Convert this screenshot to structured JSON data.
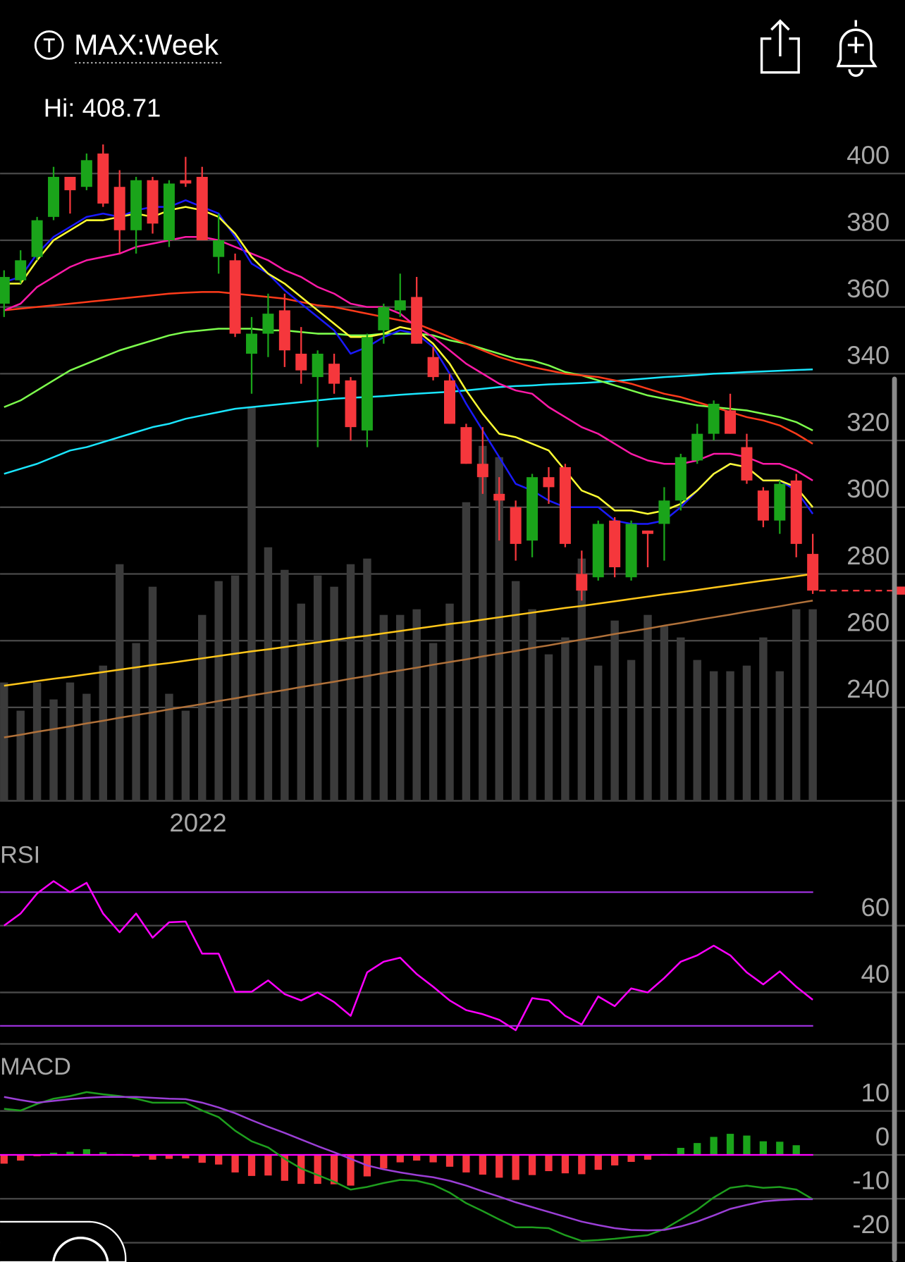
{
  "header": {
    "symbol": "MAX:Week",
    "hi": "Hi: 408.71"
  },
  "chart_data": [
    {
      "type": "candlestick",
      "categories": [
        null,
        null,
        null,
        null,
        null,
        null,
        null,
        null,
        null,
        null,
        null,
        null,
        "2022",
        null,
        null,
        null,
        null,
        null,
        null,
        null,
        null,
        null,
        null,
        null,
        null,
        null,
        null,
        null,
        null,
        null,
        null,
        null,
        null,
        null,
        null,
        null,
        null,
        null,
        null,
        null,
        null,
        null,
        null,
        null,
        null,
        null,
        null,
        null,
        null,
        null
      ],
      "open": [
        361,
        368,
        375,
        387,
        399,
        396,
        406,
        396,
        383,
        398,
        380,
        398,
        399,
        375,
        374,
        346,
        352,
        359,
        346,
        339,
        343,
        338,
        323,
        353,
        359,
        363,
        345,
        338,
        324,
        313,
        304,
        300,
        290,
        309,
        312,
        280,
        279,
        296,
        279,
        293,
        295,
        302,
        314,
        322,
        329,
        318,
        305,
        296,
        308,
        286
      ],
      "high": [
        371,
        377,
        387,
        402,
        399,
        406,
        408.71,
        401,
        399,
        399,
        398,
        405,
        402,
        388,
        376,
        357,
        364,
        364,
        354,
        347,
        346,
        339,
        352,
        361,
        370,
        369,
        348,
        340,
        325,
        324,
        309,
        302,
        310,
        312,
        313,
        287,
        296,
        297,
        296,
        293,
        306,
        316,
        325,
        332,
        334,
        322,
        306,
        308,
        310,
        292
      ],
      "low": [
        357,
        367,
        374,
        386,
        388,
        395,
        390,
        376,
        376,
        382,
        378,
        396,
        380,
        370,
        351,
        334,
        345,
        342,
        337,
        318,
        334,
        320,
        318,
        349,
        357,
        349,
        338,
        325,
        313,
        304,
        290,
        284,
        285,
        301,
        288,
        272,
        278,
        279,
        278,
        282,
        284,
        299,
        313,
        320,
        322,
        307,
        294,
        292,
        285,
        274
      ],
      "close": [
        369,
        374,
        386,
        399,
        395,
        404,
        391,
        383,
        398,
        385,
        397,
        397,
        380,
        380,
        352,
        352,
        358,
        347,
        341,
        346,
        337,
        324,
        351,
        360,
        362,
        349,
        339,
        325,
        313,
        309,
        302,
        289,
        309,
        306,
        289,
        275,
        295,
        282,
        295,
        292,
        302,
        315,
        322,
        331,
        322,
        308,
        296,
        307,
        289,
        275
      ],
      "volume": [
        21,
        16,
        21,
        18,
        21,
        19,
        24,
        42,
        28,
        38,
        19,
        16,
        33,
        39,
        40,
        70,
        45,
        41,
        35,
        40,
        38,
        42,
        43,
        33,
        33,
        34,
        28,
        35,
        53,
        63,
        61,
        39,
        34,
        26,
        29,
        43,
        24,
        32,
        25,
        33,
        31,
        29,
        25,
        23,
        23,
        24,
        29,
        23,
        34,
        34
      ],
      "vlim": [
        0,
        100
      ],
      "up_color": "#1aa41a",
      "down_color": "#f5373c",
      "volume_color": "#3b3b3b",
      "ylim": [
        212,
        411
      ],
      "yticks": [
        240,
        260,
        280,
        300,
        320,
        340,
        360,
        380,
        400
      ],
      "grid": true,
      "series": [
        {
          "color": "#b0713a",
          "values": [
            231,
            231.8,
            232.7,
            233.5,
            234.3,
            235.2,
            236,
            236.9,
            237.7,
            238.5,
            239.4,
            240.2,
            241,
            241.9,
            242.7,
            243.6,
            244.4,
            245.2,
            246.1,
            246.9,
            247.7,
            248.6,
            249.4,
            250.3,
            251.1,
            251.9,
            252.8,
            253.6,
            254.4,
            255.3,
            256.1,
            256.9,
            257.8,
            258.6,
            259.5,
            260.3,
            261.1,
            262,
            262.8,
            263.6,
            264.5,
            265.3,
            266.2,
            267,
            267.8,
            268.7,
            269.5,
            270.3,
            271.2,
            272
          ]
        },
        {
          "color": "#ffc61a",
          "values": [
            246.5,
            247.2,
            247.9,
            248.6,
            249.2,
            249.9,
            250.6,
            251.3,
            252,
            252.7,
            253.3,
            254,
            254.7,
            255.4,
            256.1,
            256.8,
            257.4,
            258.1,
            258.8,
            259.5,
            260.2,
            260.9,
            261.5,
            262.2,
            262.9,
            263.6,
            264.3,
            265,
            265.6,
            266.3,
            267,
            267.7,
            268.4,
            269.1,
            269.8,
            270.4,
            271.1,
            271.8,
            272.5,
            273.2,
            273.9,
            274.5,
            275.2,
            275.9,
            276.6,
            277.3,
            278,
            278.6,
            279.3,
            280
          ]
        },
        {
          "color": "#1ae6ff",
          "values": [
            310,
            311.5,
            313,
            315,
            317,
            318,
            319.5,
            321,
            322.5,
            324,
            325,
            326.5,
            327.5,
            328.5,
            329.5,
            330,
            330.5,
            331,
            331.5,
            332,
            332.5,
            332.8,
            333,
            333.3,
            333.7,
            334,
            334.3,
            334.6,
            335,
            335.5,
            336,
            336.3,
            336.5,
            336.8,
            337,
            337.2,
            337.5,
            337.8,
            338.2,
            338.6,
            339,
            339.3,
            339.6,
            340,
            340.2,
            340.5,
            340.7,
            340.9,
            341.1,
            341.3
          ]
        },
        {
          "color": "#7dff4d",
          "values": [
            330,
            332,
            335,
            338,
            341,
            343,
            345,
            347,
            348.5,
            350,
            351.5,
            352.5,
            353,
            353.5,
            353.5,
            353.5,
            353,
            353,
            352.5,
            352,
            352,
            351.5,
            351.5,
            352,
            352,
            352,
            351.5,
            350,
            349,
            347.5,
            346,
            344.5,
            344,
            342.5,
            340.5,
            339.5,
            338,
            336.5,
            335,
            333.5,
            332.5,
            331.5,
            330.5,
            330,
            329.5,
            329,
            328,
            327,
            325.5,
            323
          ]
        },
        {
          "color": "#ff3b1a",
          "values": [
            359,
            359.5,
            360,
            360.5,
            361,
            361.5,
            362,
            362.5,
            363,
            363.5,
            364,
            364.3,
            364.5,
            364.5,
            364,
            363.5,
            363,
            362.5,
            361.5,
            360.5,
            360,
            359,
            358,
            357,
            356,
            355,
            353,
            351,
            349,
            347,
            345,
            343.5,
            342,
            341,
            340,
            339.5,
            339,
            338,
            337,
            335.5,
            334,
            333,
            331.5,
            330,
            328.5,
            327,
            326,
            324.5,
            322,
            319
          ]
        },
        {
          "color": "#ff1aa8",
          "values": [
            359,
            361,
            366,
            369,
            372,
            374,
            375,
            376,
            378,
            379,
            380,
            381,
            381,
            380,
            378,
            376,
            374,
            371,
            369,
            366,
            364,
            361,
            360,
            360,
            358,
            354,
            351,
            347,
            343,
            340,
            337,
            335,
            334,
            330,
            327,
            324,
            322,
            319,
            316,
            314,
            313,
            313,
            314,
            316,
            316,
            315,
            313,
            313,
            311,
            308
          ]
        },
        {
          "color": "#1a1aff",
          "values": [
            367.5,
            369,
            376,
            381,
            384,
            387,
            388,
            387,
            389,
            390,
            390,
            392,
            390,
            388,
            381,
            373,
            370,
            365,
            361,
            357,
            353,
            346,
            348,
            351,
            353,
            352,
            348,
            340,
            331,
            323,
            315,
            307,
            305,
            302,
            300,
            300,
            300,
            296,
            295,
            295,
            296,
            300,
            305,
            310,
            313,
            312,
            308,
            308,
            305,
            298
          ]
        },
        {
          "color": "#ffff33",
          "values": [
            367,
            367,
            374,
            380,
            383,
            386,
            386,
            387,
            388,
            387,
            389,
            390,
            389,
            387,
            382,
            375,
            370,
            367,
            363,
            359,
            355,
            351,
            351,
            352,
            354,
            353,
            349,
            343,
            335,
            328,
            322,
            321,
            319,
            317,
            311,
            305,
            303,
            299,
            299,
            298,
            299,
            301,
            305,
            310,
            313,
            312,
            308,
            308,
            306,
            300
          ]
        }
      ]
    },
    {
      "type": "line",
      "label": "RSI",
      "ylim": [
        24.6,
        86.5
      ],
      "yticks": [
        40,
        60
      ],
      "grid": true,
      "levels": [
        70,
        30
      ],
      "level_color": "#9b30d9",
      "series": [
        {
          "color": "#ff00ff",
          "values": [
            60,
            63.6,
            69.6,
            73.3,
            70,
            72.8,
            63.6,
            58,
            63.6,
            56.4,
            61,
            61.2,
            51.6,
            51.6,
            40.2,
            40.2,
            43.6,
            39.5,
            37.6,
            40,
            37.1,
            33,
            46,
            49.2,
            50.4,
            45.5,
            41.7,
            37.6,
            34.7,
            33.5,
            31.8,
            28.7,
            38.3,
            37.6,
            33,
            30.4,
            38.8,
            35.9,
            41.2,
            40,
            44.3,
            49.2,
            51.1,
            54,
            51.1,
            46,
            42.4,
            46.3,
            41.7,
            37.8
          ]
        }
      ]
    },
    {
      "type": "macd",
      "label": "MACD",
      "ylim": [
        -24.4,
        22.9
      ],
      "yticks": [
        -20,
        -10,
        0,
        10
      ],
      "grid": true,
      "zero_color": "#ff00ff",
      "up_color": "#1aa41a",
      "down_color": "#f5373c",
      "histogram": [
        -2,
        -1.3,
        -0.3,
        0.5,
        0.7,
        1.3,
        0.6,
        0.2,
        -0.4,
        -1.1,
        -0.9,
        -0.8,
        -1.8,
        -2.2,
        -4,
        -4.8,
        -4.7,
        -5.9,
        -6.6,
        -6.6,
        -6.7,
        -7,
        -4.9,
        -3.1,
        -1.7,
        -1.3,
        -1.7,
        -2.7,
        -4,
        -4.5,
        -5.2,
        -5.7,
        -4.6,
        -3.7,
        -4.2,
        -4.4,
        -3.4,
        -2.4,
        -1.6,
        -1.1,
        0.2,
        1.6,
        2.7,
        4.1,
        4.8,
        4.4,
        3.1,
        3,
        2.2,
        0
      ],
      "series": [
        {
          "color": "#1e9e1e",
          "values": [
            10.5,
            10.1,
            11.6,
            12.8,
            13.4,
            14.3,
            13.8,
            13.4,
            12.8,
            11.9,
            11.9,
            11.9,
            10.1,
            8.6,
            5.5,
            3.1,
            1.7,
            -0.9,
            -3.1,
            -4.6,
            -6.1,
            -7.9,
            -7.3,
            -6.4,
            -5.7,
            -5.9,
            -6.8,
            -8.6,
            -11,
            -12.8,
            -14.7,
            -16.5,
            -16.5,
            -16.7,
            -18.3,
            -19.6,
            -19.4,
            -19.1,
            -18.7,
            -18.3,
            -16.9,
            -14.7,
            -12.5,
            -9.7,
            -7.5,
            -7,
            -7.5,
            -7.3,
            -7.9,
            -10.1
          ]
        },
        {
          "color": "#9b3fd6",
          "values": [
            13.2,
            12.5,
            11.9,
            12.3,
            12.7,
            13,
            13.2,
            13.2,
            13.2,
            13,
            12.8,
            12.7,
            11.9,
            10.8,
            9.5,
            7.9,
            6.4,
            5,
            3.5,
            2,
            0.6,
            -0.9,
            -2.4,
            -3.3,
            -4,
            -4.6,
            -5.1,
            -5.9,
            -7,
            -8.3,
            -9.5,
            -10.8,
            -11.9,
            -13,
            -14.1,
            -15.2,
            -16,
            -16.7,
            -17.1,
            -17.2,
            -17.1,
            -16.3,
            -15.2,
            -13.8,
            -12.3,
            -11.4,
            -10.6,
            -10.3,
            -10.1,
            -10.1
          ]
        }
      ]
    }
  ]
}
